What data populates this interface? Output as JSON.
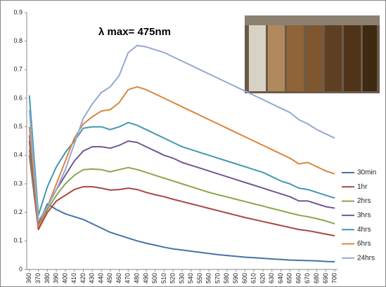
{
  "chart_data": {
    "type": "line",
    "annotation": "λ max= 475nm",
    "x": [
      360,
      370,
      380,
      390,
      400,
      410,
      420,
      430,
      440,
      450,
      460,
      470,
      480,
      490,
      500,
      510,
      520,
      530,
      540,
      550,
      560,
      570,
      580,
      590,
      600,
      610,
      620,
      630,
      640,
      650,
      660,
      670,
      680,
      690,
      700
    ],
    "xlim": [
      357,
      703
    ],
    "xticks": [
      360,
      370,
      380,
      390,
      400,
      410,
      420,
      430,
      440,
      450,
      460,
      470,
      480,
      490,
      500,
      510,
      520,
      530,
      540,
      550,
      560,
      570,
      580,
      590,
      600,
      610,
      620,
      630,
      640,
      650,
      660,
      670,
      680,
      690,
      700
    ],
    "ylim": [
      0,
      0.9
    ],
    "yticks": [
      0,
      0.1,
      0.2,
      0.3,
      0.4,
      0.5,
      0.6,
      0.7,
      0.8,
      0.9
    ],
    "grid": false,
    "legend": "right",
    "series": [
      {
        "name": "30min",
        "color": "#4572a7",
        "values": [
          0.47,
          0.16,
          0.23,
          0.21,
          0.195,
          0.185,
          0.175,
          0.16,
          0.145,
          0.13,
          0.12,
          0.11,
          0.1,
          0.092,
          0.085,
          0.078,
          0.072,
          0.068,
          0.064,
          0.06,
          0.056,
          0.052,
          0.049,
          0.046,
          0.043,
          0.041,
          0.039,
          0.037,
          0.035,
          0.033,
          0.032,
          0.031,
          0.03,
          0.028,
          0.027
        ]
      },
      {
        "name": "1hr",
        "color": "#aa4643",
        "values": [
          0.4,
          0.14,
          0.2,
          0.24,
          0.26,
          0.28,
          0.29,
          0.29,
          0.285,
          0.278,
          0.28,
          0.285,
          0.28,
          0.27,
          0.262,
          0.255,
          0.246,
          0.238,
          0.23,
          0.222,
          0.214,
          0.206,
          0.198,
          0.19,
          0.182,
          0.175,
          0.168,
          0.161,
          0.154,
          0.147,
          0.14,
          0.136,
          0.13,
          0.124,
          0.118
        ]
      },
      {
        "name": "2hrs",
        "color": "#89a54e",
        "values": [
          0.42,
          0.15,
          0.21,
          0.26,
          0.3,
          0.33,
          0.35,
          0.352,
          0.35,
          0.342,
          0.35,
          0.357,
          0.35,
          0.34,
          0.33,
          0.32,
          0.31,
          0.3,
          0.29,
          0.28,
          0.27,
          0.262,
          0.254,
          0.246,
          0.238,
          0.23,
          0.222,
          0.214,
          0.206,
          0.198,
          0.19,
          0.185,
          0.178,
          0.17,
          0.16
        ]
      },
      {
        "name": "3hrs",
        "color": "#71588f",
        "values": [
          0.45,
          0.15,
          0.22,
          0.28,
          0.33,
          0.38,
          0.415,
          0.43,
          0.43,
          0.425,
          0.435,
          0.45,
          0.445,
          0.43,
          0.415,
          0.4,
          0.39,
          0.375,
          0.365,
          0.355,
          0.345,
          0.335,
          0.325,
          0.315,
          0.305,
          0.295,
          0.285,
          0.275,
          0.265,
          0.255,
          0.24,
          0.24,
          0.23,
          0.22,
          0.215
        ]
      },
      {
        "name": "4hrs",
        "color": "#4198af",
        "values": [
          0.61,
          0.19,
          0.29,
          0.36,
          0.41,
          0.45,
          0.495,
          0.5,
          0.5,
          0.49,
          0.5,
          0.515,
          0.505,
          0.49,
          0.475,
          0.46,
          0.445,
          0.43,
          0.42,
          0.41,
          0.4,
          0.39,
          0.38,
          0.37,
          0.36,
          0.35,
          0.34,
          0.325,
          0.31,
          0.3,
          0.285,
          0.28,
          0.27,
          0.26,
          0.25
        ]
      },
      {
        "name": "6hrs",
        "color": "#db843d",
        "values": [
          0.5,
          0.15,
          0.22,
          0.3,
          0.38,
          0.46,
          0.51,
          0.535,
          0.555,
          0.56,
          0.585,
          0.63,
          0.64,
          0.63,
          0.615,
          0.6,
          0.585,
          0.57,
          0.555,
          0.54,
          0.525,
          0.51,
          0.495,
          0.48,
          0.465,
          0.45,
          0.435,
          0.42,
          0.405,
          0.39,
          0.37,
          0.375,
          0.36,
          0.345,
          0.335
        ]
      },
      {
        "name": "24hrs",
        "color": "#93a9cf",
        "values": [
          0.56,
          0.17,
          0.22,
          0.28,
          0.35,
          0.44,
          0.53,
          0.58,
          0.62,
          0.64,
          0.68,
          0.76,
          0.785,
          0.78,
          0.77,
          0.76,
          0.745,
          0.73,
          0.715,
          0.7,
          0.685,
          0.67,
          0.655,
          0.64,
          0.625,
          0.61,
          0.595,
          0.58,
          0.565,
          0.55,
          0.525,
          0.51,
          0.49,
          0.475,
          0.46
        ]
      }
    ]
  }
}
